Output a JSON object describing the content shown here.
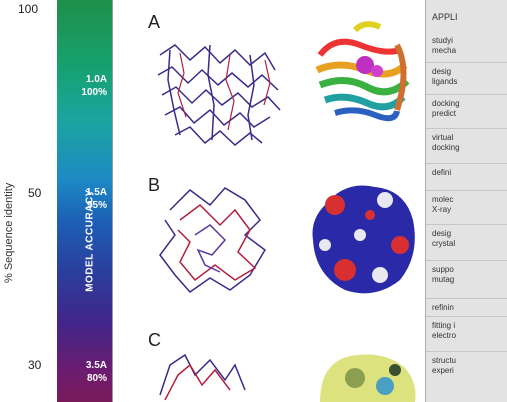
{
  "y_axis": {
    "title": "% Sequence identity",
    "ticks": [
      "100",
      "50",
      "30"
    ]
  },
  "accuracy_bar": {
    "title": "MODEL ACCURACY",
    "levels": [
      {
        "resolution": "1.0A",
        "accuracy": "100%"
      },
      {
        "resolution": "1.5A",
        "accuracy": "95%"
      },
      {
        "resolution": "3.5A",
        "accuracy": "80%"
      }
    ]
  },
  "panels": [
    "A",
    "B",
    "C"
  ],
  "applications": {
    "header": "APPLI",
    "items": [
      [
        "studyi",
        "mecha"
      ],
      [
        "desig",
        "ligands"
      ],
      [
        "docking",
        "predict"
      ],
      [
        "virtual",
        "docking"
      ],
      [
        "defini"
      ],
      [
        "molec",
        "X-ray"
      ],
      [
        "desig",
        "crystal"
      ],
      [
        "suppo",
        "mutag"
      ],
      [
        "refinin"
      ],
      [
        "fitting i",
        "electro"
      ],
      [
        "structu",
        "experi"
      ]
    ]
  }
}
